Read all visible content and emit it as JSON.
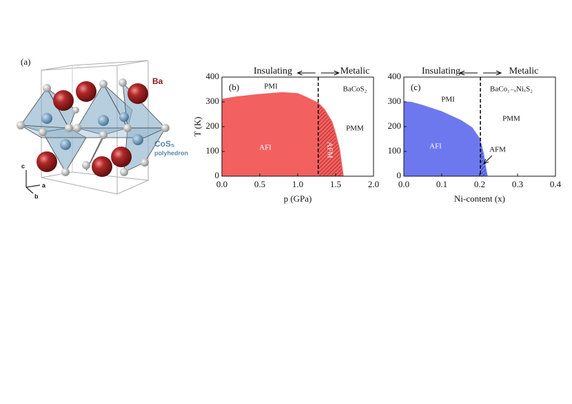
{
  "structure": {
    "label": "(a)",
    "atom_label": "Ba",
    "polyhedron_label": "CoS₅",
    "polyhedron_note": "polyhedron",
    "axes": [
      "a",
      "b",
      "c"
    ]
  },
  "chart_data": [
    {
      "type": "area",
      "panel": "(b)",
      "x_label": "p (GPa)",
      "y_label": "T (K)",
      "x": [
        0,
        0.2,
        0.5,
        0.8,
        1.0,
        1.1,
        1.2,
        1.27,
        1.35,
        1.45,
        1.5,
        1.55,
        1.6
      ],
      "values": [
        310,
        320,
        330,
        337,
        333,
        320,
        305,
        295,
        270,
        220,
        170,
        110,
        0
      ],
      "color": "#f26060",
      "divider_x": 1.27,
      "xlim": [
        0,
        2
      ],
      "ylim": [
        0,
        400
      ],
      "xticks": [
        {
          "value": 0,
          "label": "0.0"
        },
        {
          "value": 0.5,
          "label": "0.5"
        },
        {
          "value": 1,
          "label": "1.0"
        },
        {
          "value": 1.5,
          "label": "1.5"
        },
        {
          "value": 2,
          "label": "2.0"
        }
      ],
      "yticks": [
        0,
        100,
        200,
        300,
        400
      ],
      "annotations": [
        "Insulating",
        "Metalic",
        "PMI",
        "BaCoS₂",
        "PMM",
        "AFI",
        "AFM"
      ]
    },
    {
      "type": "area",
      "panel": "(c)",
      "x_label": "Ni-content (x)",
      "y_label": "",
      "x": [
        0,
        0.02,
        0.05,
        0.1,
        0.15,
        0.18,
        0.2,
        0.21,
        0.215,
        0.22
      ],
      "values": [
        300,
        298,
        285,
        260,
        225,
        195,
        150,
        90,
        40,
        0
      ],
      "color": "#6d78ee",
      "divider_x": 0.202,
      "xlim": [
        0,
        0.4
      ],
      "ylim": [
        0,
        400
      ],
      "xticks": [
        {
          "value": 0,
          "label": "0.0"
        },
        {
          "value": 0.1,
          "label": "0.1"
        },
        {
          "value": 0.2,
          "label": "0.2"
        },
        {
          "value": 0.3,
          "label": "0.3"
        },
        {
          "value": 0.4,
          "label": "0.4"
        }
      ],
      "yticks": [
        0,
        100,
        200,
        300,
        400
      ],
      "annotations": [
        "Insulating",
        "Metalic",
        "PMI",
        "BaCo₁₋ₓNiₓS₂",
        "PMM",
        "AFI",
        "AFM"
      ]
    }
  ]
}
